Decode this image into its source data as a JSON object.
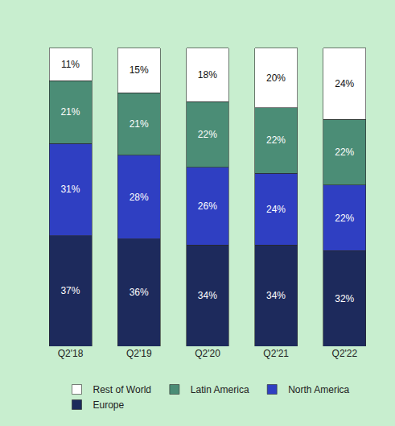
{
  "chart_data": {
    "type": "bar",
    "stacked": true,
    "data_labels": true,
    "tick_labels": "x",
    "grid": false,
    "legend": "bottom",
    "categories": [
      "Q2'18",
      "Q2'19",
      "Q2'20",
      "Q2'21",
      "Q2'22"
    ],
    "series": [
      {
        "name": "Europe",
        "color": "#1d2a5c",
        "values": [
          37,
          36,
          34,
          34,
          32
        ],
        "value_labels": [
          "37%",
          "36%",
          "34%",
          "34%",
          "32%"
        ]
      },
      {
        "name": "North America",
        "color": "#2f3fc2",
        "values": [
          31,
          28,
          26,
          24,
          22
        ],
        "value_labels": [
          "31%",
          "28%",
          "26%",
          "24%",
          "22%"
        ]
      },
      {
        "name": "Latin America",
        "color": "#4b8d76",
        "values": [
          21,
          21,
          22,
          22,
          22
        ],
        "value_labels": [
          "21%",
          "21%",
          "22%",
          "22%",
          "22%"
        ]
      },
      {
        "name": "Rest of World",
        "color": "#ffffff",
        "values": [
          11,
          15,
          18,
          20,
          24
        ],
        "value_labels": [
          "11%",
          "15%",
          "18%",
          "20%",
          "24%"
        ]
      }
    ]
  }
}
